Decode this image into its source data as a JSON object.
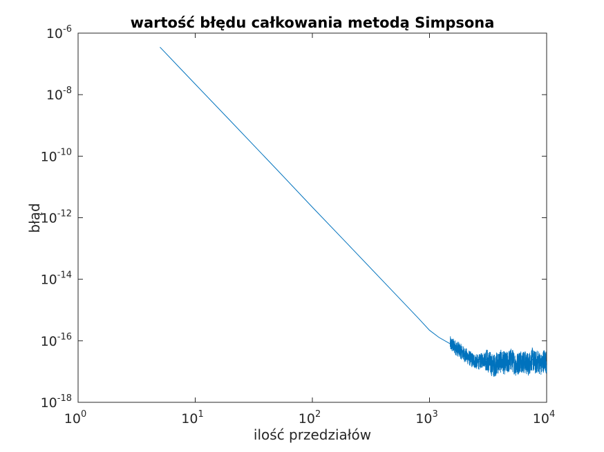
{
  "chart_data": {
    "type": "line",
    "title": "wartość błędu całkowania metodą Simpsona",
    "xlabel": "ilość przedziałów",
    "ylabel": "błąd",
    "x_scale": "log",
    "y_scale": "log",
    "xlim": [
      1,
      10000
    ],
    "ylim": [
      1e-18,
      1e-06
    ],
    "x_ticks": [
      {
        "base": "10",
        "exp": "0"
      },
      {
        "base": "10",
        "exp": "1"
      },
      {
        "base": "10",
        "exp": "2"
      },
      {
        "base": "10",
        "exp": "3"
      },
      {
        "base": "10",
        "exp": "4"
      }
    ],
    "y_ticks": [
      {
        "base": "10",
        "exp": "-18"
      },
      {
        "base": "10",
        "exp": "-16"
      },
      {
        "base": "10",
        "exp": "-14"
      },
      {
        "base": "10",
        "exp": "-12"
      },
      {
        "base": "10",
        "exp": "-10"
      },
      {
        "base": "10",
        "exp": "-8"
      },
      {
        "base": "10",
        "exp": "-6"
      }
    ],
    "grid": false,
    "box": true,
    "line_color": "#0072bd",
    "series": [
      {
        "x": [
          5,
          10,
          20,
          50,
          100,
          200,
          500,
          800,
          1000,
          1200,
          1500,
          1800,
          2000,
          2300,
          2600,
          3000,
          3500,
          4000,
          4500,
          5000,
          5500,
          6000,
          6500,
          7000,
          7500,
          8000,
          8500,
          9000,
          9500,
          10000
        ],
        "y": [
          3.5e-07,
          2.2e-08,
          1.4e-09,
          3.6e-11,
          2.2e-12,
          1.4e-13,
          3.6e-15,
          5.5e-16,
          2.2e-16,
          1.3e-16,
          8e-17,
          5e-17,
          3.5e-17,
          2.4e-17,
          2e-17,
          2.6e-17,
          1.5e-17,
          2.2e-17,
          1.8e-17,
          2.5e-17,
          1.6e-17,
          2.3e-17,
          2e-17,
          1.7e-17,
          2.6e-17,
          1.9e-17,
          2.2e-17,
          1.6e-17,
          2.4e-17,
          2e-17
        ]
      }
    ]
  }
}
